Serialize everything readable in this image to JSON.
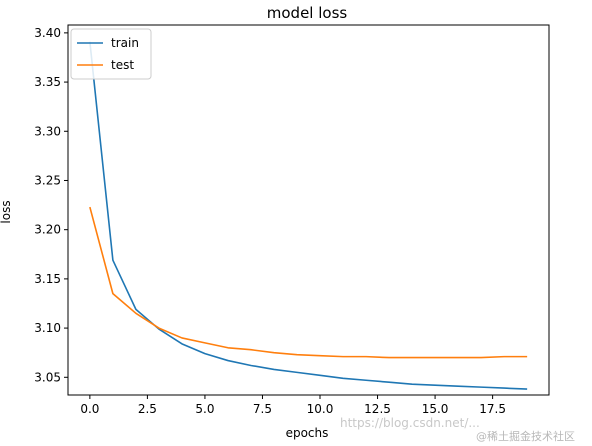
{
  "chart_data": {
    "type": "line",
    "title": "model loss",
    "xlabel": "epochs",
    "ylabel": "loss",
    "xlim": [
      -0.95,
      19.95
    ],
    "ylim": [
      3.032,
      3.408
    ],
    "xticks": [
      0.0,
      2.5,
      5.0,
      7.5,
      10.0,
      12.5,
      15.0,
      17.5
    ],
    "xtick_labels": [
      "0.0",
      "2.5",
      "5.0",
      "7.5",
      "10.0",
      "12.5",
      "15.0",
      "17.5"
    ],
    "yticks": [
      3.05,
      3.1,
      3.15,
      3.2,
      3.25,
      3.3,
      3.35,
      3.4
    ],
    "ytick_labels": [
      "3.05",
      "3.10",
      "3.15",
      "3.20",
      "3.25",
      "3.30",
      "3.35",
      "3.40"
    ],
    "grid": false,
    "legend_position": "top-left",
    "x": [
      0,
      1,
      2,
      3,
      4,
      5,
      6,
      7,
      8,
      9,
      10,
      11,
      12,
      13,
      14,
      15,
      16,
      17,
      18,
      19
    ],
    "series": [
      {
        "name": "train",
        "color": "#1f77b4",
        "values": [
          3.391,
          3.169,
          3.119,
          3.099,
          3.084,
          3.074,
          3.067,
          3.062,
          3.058,
          3.055,
          3.052,
          3.049,
          3.047,
          3.045,
          3.043,
          3.042,
          3.041,
          3.04,
          3.039,
          3.038
        ]
      },
      {
        "name": "test",
        "color": "#ff7f0e",
        "values": [
          3.223,
          3.135,
          3.115,
          3.1,
          3.09,
          3.085,
          3.08,
          3.078,
          3.075,
          3.073,
          3.072,
          3.071,
          3.071,
          3.07,
          3.07,
          3.07,
          3.07,
          3.07,
          3.071,
          3.071
        ]
      }
    ]
  },
  "watermark": {
    "text": "https://blog.csdn.net/...",
    "text2": "@稀土掘金技术社区"
  }
}
